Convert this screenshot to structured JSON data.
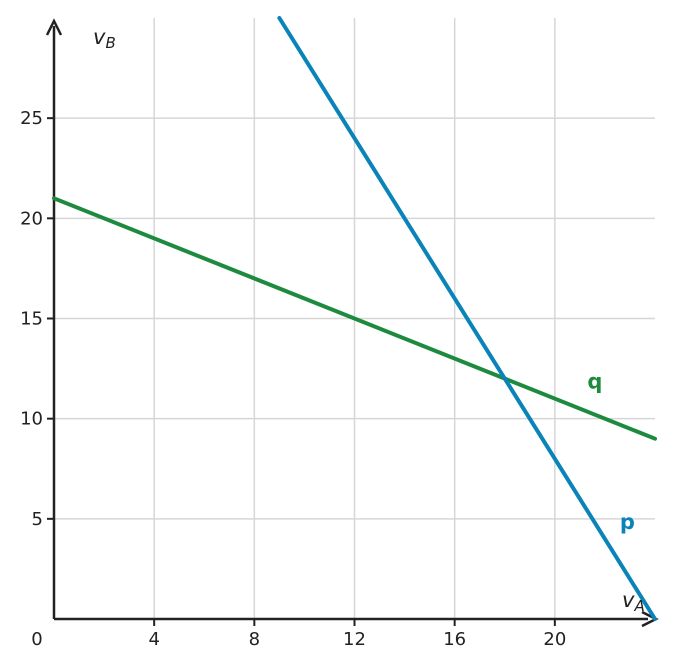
{
  "chart_data": {
    "type": "line",
    "x_axis": {
      "label_main": "v",
      "label_sub": "A",
      "range": [
        0,
        24
      ],
      "ticks": [
        4,
        8,
        12,
        16,
        20
      ],
      "tick_labels": [
        "4",
        "8",
        "12",
        "16",
        "20"
      ]
    },
    "y_axis": {
      "label_main": "v",
      "label_sub": "B",
      "range": [
        0,
        30
      ],
      "ticks": [
        5,
        10,
        15,
        20,
        25
      ],
      "tick_labels": [
        "5",
        "10",
        "15",
        "20",
        "25"
      ]
    },
    "origin_label": "0",
    "grid": true,
    "series": [
      {
        "name": "q",
        "color": "#1e8a3e",
        "points": [
          [
            0,
            21
          ],
          [
            24,
            9
          ]
        ]
      },
      {
        "name": "p",
        "color": "#0a84b8",
        "points": [
          [
            9,
            30
          ],
          [
            24,
            0
          ]
        ]
      }
    ],
    "annotations": [
      {
        "series": "q",
        "text": "q",
        "near": [
          21.6,
          11.5
        ]
      },
      {
        "series": "p",
        "text": "p",
        "near": [
          22.9,
          4.5
        ]
      }
    ]
  }
}
